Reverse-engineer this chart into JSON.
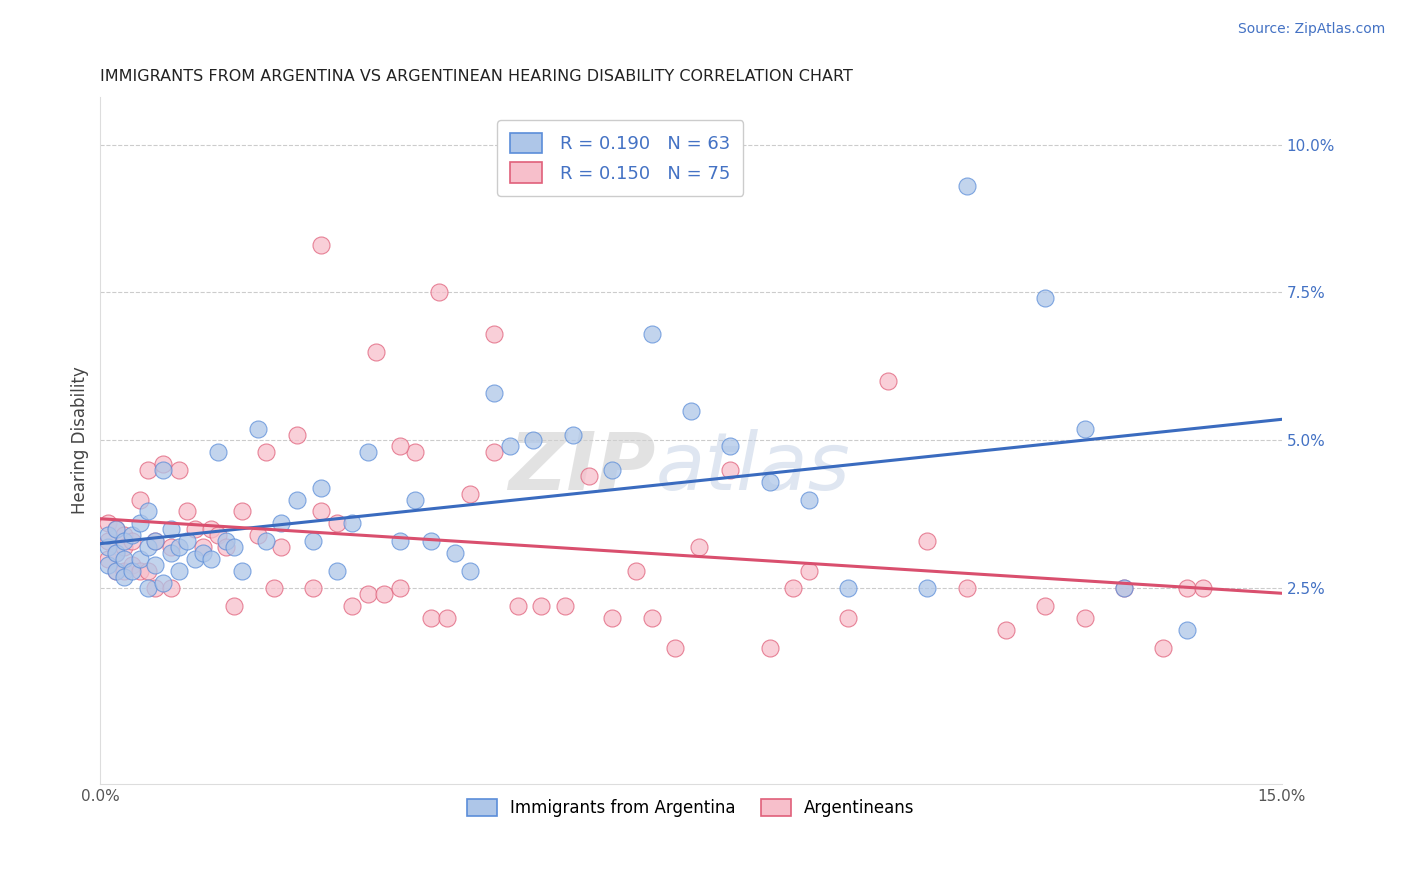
{
  "title": "IMMIGRANTS FROM ARGENTINA VS ARGENTINEAN HEARING DISABILITY CORRELATION CHART",
  "source": "Source: ZipAtlas.com",
  "ylabel": "Hearing Disability",
  "xlim": [
    0.0,
    0.15
  ],
  "ylim": [
    -0.008,
    0.108
  ],
  "x_tick_positions": [
    0.0,
    0.03,
    0.06,
    0.09,
    0.12,
    0.15
  ],
  "x_tick_labels": [
    "0.0%",
    "",
    "",
    "",
    "",
    "15.0%"
  ],
  "y_ticks_right": [
    0.025,
    0.05,
    0.075,
    0.1
  ],
  "y_tick_labels_right": [
    "2.5%",
    "5.0%",
    "7.5%",
    "10.0%"
  ],
  "blue_fill": "#aec6e8",
  "blue_edge": "#5b8dd9",
  "pink_fill": "#f7bfcb",
  "pink_edge": "#e0607a",
  "blue_line_color": "#3a6bbf",
  "pink_line_color": "#d94f6e",
  "legend_R1": "0.190",
  "legend_N1": "63",
  "legend_R2": "0.150",
  "legend_N2": "75",
  "watermark": "ZIPatlas",
  "legend_label1": "Immigrants from Argentina",
  "legend_label2": "Argentineans",
  "blue_scatter_x": [
    0.001,
    0.001,
    0.001,
    0.002,
    0.002,
    0.002,
    0.003,
    0.003,
    0.003,
    0.004,
    0.004,
    0.005,
    0.005,
    0.006,
    0.006,
    0.006,
    0.007,
    0.007,
    0.008,
    0.008,
    0.009,
    0.009,
    0.01,
    0.01,
    0.011,
    0.012,
    0.013,
    0.014,
    0.015,
    0.016,
    0.017,
    0.018,
    0.02,
    0.021,
    0.023,
    0.025,
    0.027,
    0.028,
    0.03,
    0.032,
    0.034,
    0.038,
    0.04,
    0.042,
    0.045,
    0.047,
    0.05,
    0.052,
    0.055,
    0.06,
    0.065,
    0.07,
    0.075,
    0.08,
    0.085,
    0.09,
    0.095,
    0.105,
    0.11,
    0.12,
    0.125,
    0.13,
    0.138
  ],
  "blue_scatter_y": [
    0.032,
    0.029,
    0.034,
    0.031,
    0.035,
    0.028,
    0.033,
    0.027,
    0.03,
    0.034,
    0.028,
    0.03,
    0.036,
    0.032,
    0.038,
    0.025,
    0.033,
    0.029,
    0.045,
    0.026,
    0.031,
    0.035,
    0.032,
    0.028,
    0.033,
    0.03,
    0.031,
    0.03,
    0.048,
    0.033,
    0.032,
    0.028,
    0.052,
    0.033,
    0.036,
    0.04,
    0.033,
    0.042,
    0.028,
    0.036,
    0.048,
    0.033,
    0.04,
    0.033,
    0.031,
    0.028,
    0.058,
    0.049,
    0.05,
    0.051,
    0.045,
    0.068,
    0.055,
    0.049,
    0.043,
    0.04,
    0.025,
    0.025,
    0.093,
    0.074,
    0.052,
    0.025,
    0.018
  ],
  "pink_scatter_x": [
    0.001,
    0.001,
    0.001,
    0.002,
    0.002,
    0.002,
    0.003,
    0.003,
    0.003,
    0.004,
    0.004,
    0.005,
    0.005,
    0.006,
    0.006,
    0.007,
    0.007,
    0.008,
    0.009,
    0.009,
    0.01,
    0.011,
    0.012,
    0.013,
    0.014,
    0.015,
    0.016,
    0.017,
    0.018,
    0.02,
    0.021,
    0.022,
    0.023,
    0.025,
    0.027,
    0.028,
    0.03,
    0.032,
    0.034,
    0.036,
    0.038,
    0.04,
    0.042,
    0.044,
    0.047,
    0.05,
    0.053,
    0.056,
    0.059,
    0.062,
    0.065,
    0.068,
    0.07,
    0.073,
    0.076,
    0.08,
    0.085,
    0.088,
    0.09,
    0.095,
    0.1,
    0.105,
    0.11,
    0.115,
    0.12,
    0.125,
    0.13,
    0.135,
    0.138,
    0.14,
    0.028,
    0.035,
    0.038,
    0.043,
    0.05
  ],
  "pink_scatter_y": [
    0.033,
    0.03,
    0.036,
    0.031,
    0.035,
    0.028,
    0.034,
    0.028,
    0.032,
    0.033,
    0.029,
    0.028,
    0.04,
    0.045,
    0.028,
    0.033,
    0.025,
    0.046,
    0.032,
    0.025,
    0.045,
    0.038,
    0.035,
    0.032,
    0.035,
    0.034,
    0.032,
    0.022,
    0.038,
    0.034,
    0.048,
    0.025,
    0.032,
    0.051,
    0.025,
    0.038,
    0.036,
    0.022,
    0.024,
    0.024,
    0.025,
    0.048,
    0.02,
    0.02,
    0.041,
    0.048,
    0.022,
    0.022,
    0.022,
    0.044,
    0.02,
    0.028,
    0.02,
    0.015,
    0.032,
    0.045,
    0.015,
    0.025,
    0.028,
    0.02,
    0.06,
    0.033,
    0.025,
    0.018,
    0.022,
    0.02,
    0.025,
    0.015,
    0.025,
    0.025,
    0.083,
    0.065,
    0.049,
    0.075,
    0.068
  ]
}
